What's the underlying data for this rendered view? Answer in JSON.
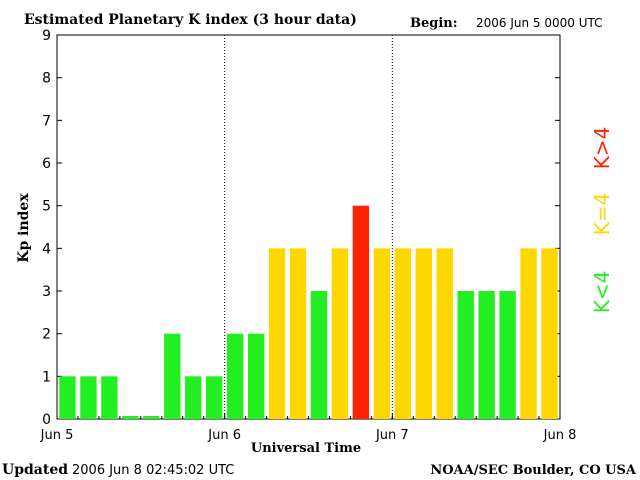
{
  "header": {
    "title": "Estimated Planetary K index (3 hour data)",
    "begin_label": "Begin:",
    "begin_value": "2006 Jun 5 0000 UTC"
  },
  "footer": {
    "updated_label": "Updated",
    "updated_value": "2006 Jun  8 02:45:02 UTC",
    "credit": "NOAA/SEC Boulder, CO USA"
  },
  "legend": {
    "high": "K>4",
    "equal": "K=4",
    "low": "K<4"
  },
  "colors": {
    "low": "#22ee22",
    "equal": "#ffd700",
    "high": "#ff2200"
  },
  "chart_data": {
    "type": "bar",
    "title": "Estimated Planetary K index (3 hour data)",
    "xlabel": "Universal Time",
    "ylabel": "Kp index",
    "ylim": [
      0,
      9
    ],
    "yticks": [
      "0",
      "1",
      "2",
      "3",
      "4",
      "5",
      "6",
      "7",
      "8",
      "9"
    ],
    "xticks": [
      "Jun 5",
      "Jun 6",
      "Jun 7",
      "Jun 8"
    ],
    "day_separators": [
      "Jun 6",
      "Jun 7"
    ],
    "interval_hours": 3,
    "values": [
      1,
      1,
      1,
      0,
      0,
      2,
      1,
      1,
      2,
      2,
      4,
      4,
      3,
      4,
      5,
      4,
      4,
      4,
      4,
      3,
      3,
      3,
      4,
      4
    ],
    "grid": false
  }
}
